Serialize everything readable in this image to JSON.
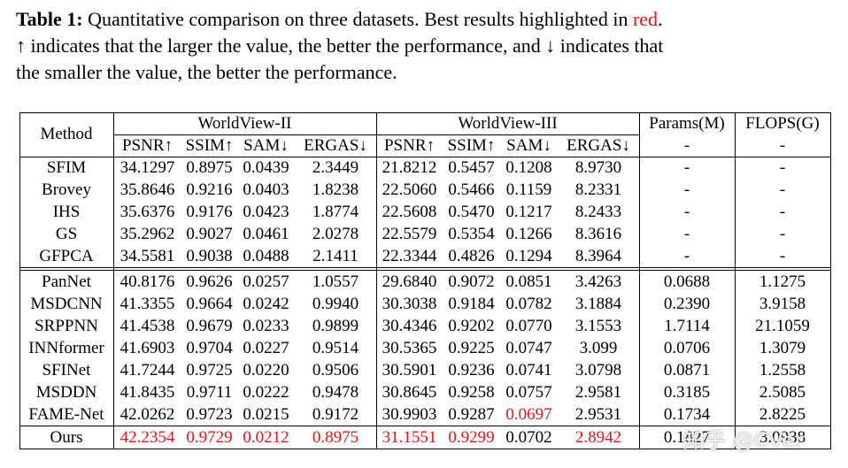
{
  "caption": {
    "label": "Table 1:",
    "line1": "Quantitative comparison on three datasets. Best results highlighted in",
    "highlight_word": "red",
    "line1_end": ".",
    "line2": "↑ indicates that the larger the value, the better the performance, and ↓ indicates that",
    "line3": "the smaller the value, the better the performance."
  },
  "table": {
    "method_header": "Method",
    "groups": [
      "WorldView-II",
      "WorldView-III",
      "Params(M)",
      "FLOPS(G)"
    ],
    "metrics": [
      "PSNR↑",
      "SSIM↑",
      "SAM↓",
      "ERGAS↓",
      "PSNR↑",
      "SSIM↑",
      "SAM↓",
      "ERGAS↓",
      "-",
      "-"
    ],
    "rows": [
      [
        "SFIM",
        "34.1297",
        "0.8975",
        "0.0439",
        "2.3449",
        "21.8212",
        "0.5457",
        "0.1208",
        "8.9730",
        "-",
        "-"
      ],
      [
        "Brovey",
        "35.8646",
        "0.9216",
        "0.0403",
        "1.8238",
        "22.5060",
        "0.5466",
        "0.1159",
        "8.2331",
        "-",
        "-"
      ],
      [
        "IHS",
        "35.6376",
        "0.9176",
        "0.0423",
        "1.8774",
        "22.5608",
        "0.5470",
        "0.1217",
        "8.2433",
        "-",
        "-"
      ],
      [
        "GS",
        "35.2962",
        "0.9027",
        "0.0461",
        "2.0278",
        "22.5579",
        "0.5354",
        "0.1266",
        "8.3616",
        "-",
        "-"
      ],
      [
        "GFPCA",
        "34.5581",
        "0.9038",
        "0.0488",
        "2.1411",
        "22.3344",
        "0.4826",
        "0.1294",
        "8.3964",
        "-",
        "-"
      ],
      [
        "PanNet",
        "40.8176",
        "0.9626",
        "0.0257",
        "1.0557",
        "29.6840",
        "0.9072",
        "0.0851",
        "3.4263",
        "0.0688",
        "1.1275"
      ],
      [
        "MSDCNN",
        "41.3355",
        "0.9664",
        "0.0242",
        "0.9940",
        "30.3038",
        "0.9184",
        "0.0782",
        "3.1884",
        "0.2390",
        "3.9158"
      ],
      [
        "SRPPNN",
        "41.4538",
        "0.9679",
        "0.0233",
        "0.9899",
        "30.4346",
        "0.9202",
        "0.0770",
        "3.1553",
        "1.7114",
        "21.1059"
      ],
      [
        "INNformer",
        "41.6903",
        "0.9704",
        "0.0227",
        "0.9514",
        "30.5365",
        "0.9225",
        "0.0747",
        "3.099",
        "0.0706",
        "1.3079"
      ],
      [
        "SFINet",
        "41.7244",
        "0.9725",
        "0.0220",
        "0.9506",
        "30.5901",
        "0.9236",
        "0.0741",
        "3.0798",
        "0.0871",
        "1.2558"
      ],
      [
        "MSDDN",
        "41.8435",
        "0.9711",
        "0.0222",
        "0.9478",
        "30.8645",
        "0.9258",
        "0.0757",
        "2.9581",
        "0.3185",
        "2.5085"
      ],
      [
        "FAME-Net",
        "42.0262",
        "0.9723",
        "0.0215",
        "0.9172",
        "30.9903",
        "0.9287",
        "0.0697",
        "2.9531",
        "0.1734",
        "2.8225"
      ],
      [
        "Ours",
        "42.2354",
        "0.9729",
        "0.0212",
        "0.8975",
        "31.1551",
        "0.9299",
        "0.0702",
        "2.8942",
        "0.1827",
        "3.0938"
      ]
    ],
    "best": [
      [
        11,
        7
      ],
      [
        12,
        1
      ],
      [
        12,
        2
      ],
      [
        12,
        3
      ],
      [
        12,
        4
      ],
      [
        12,
        5
      ],
      [
        12,
        6
      ],
      [
        12,
        8
      ]
    ],
    "highlight_color": "#e8141b"
  },
  "watermark": "知乎 @CVer"
}
